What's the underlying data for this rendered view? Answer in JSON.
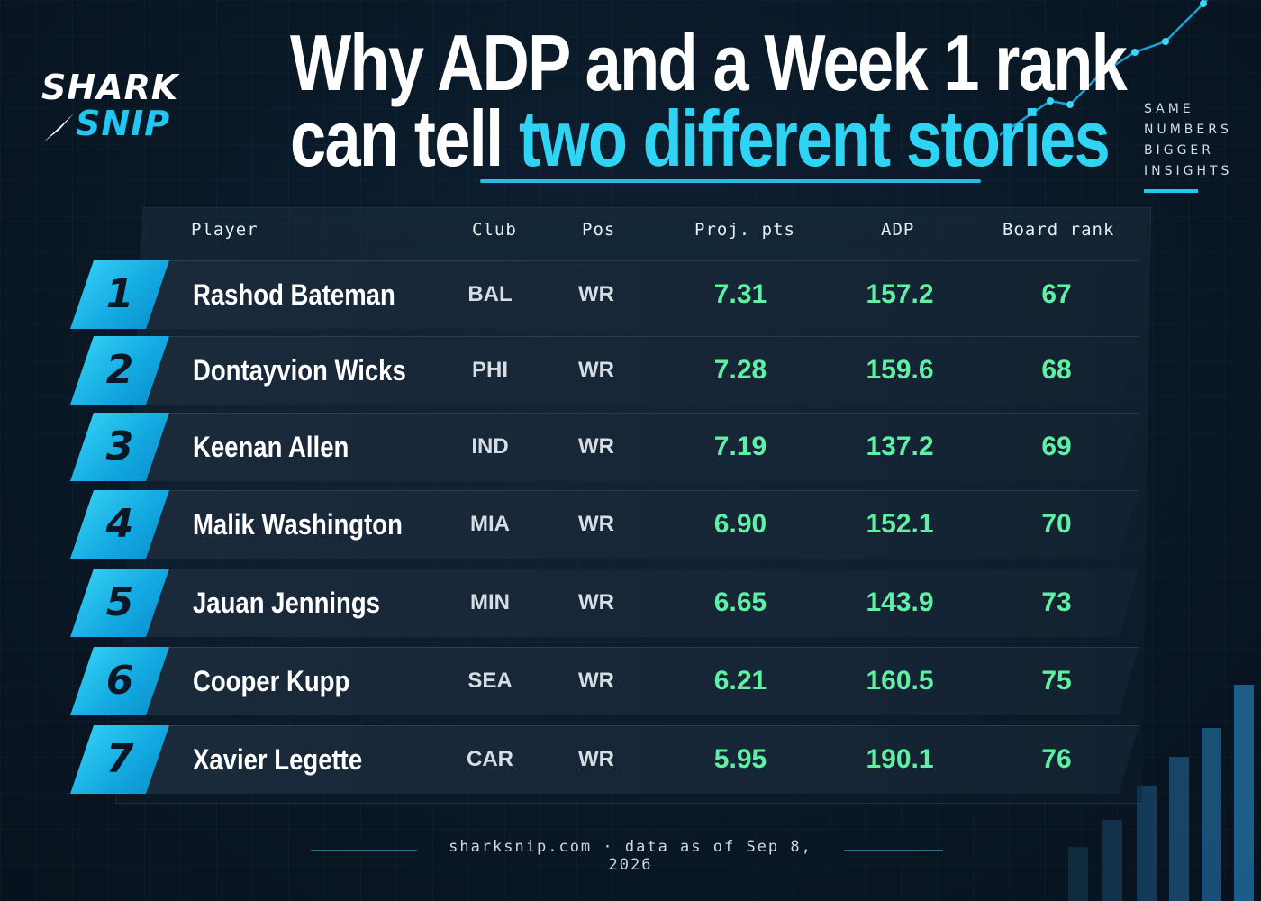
{
  "brand": {
    "line1": "SHARK",
    "line2": "SNIP"
  },
  "title": {
    "line1": "Why ADP and a Week 1 rank",
    "line2_lead": "can tell ",
    "line2_highlight": "two different stories"
  },
  "tagline": [
    "SAME",
    "NUMBERS",
    "BIGGER",
    "INSIGHTS"
  ],
  "colors": {
    "accent": "#22c6f2",
    "value_green": "#5ff0a4",
    "background": "#0a1826"
  },
  "table": {
    "headers": {
      "player": "Player",
      "club": "Club",
      "pos": "Pos",
      "proj": "Proj. pts",
      "adp": "ADP",
      "board_rank": "Board rank"
    },
    "rows": [
      {
        "rank": "1",
        "player": "Rashod Bateman",
        "club": "BAL",
        "pos": "WR",
        "proj": "7.31",
        "adp": "157.2",
        "board_rank": "67"
      },
      {
        "rank": "2",
        "player": "Dontayvion Wicks",
        "club": "PHI",
        "pos": "WR",
        "proj": "7.28",
        "adp": "159.6",
        "board_rank": "68"
      },
      {
        "rank": "3",
        "player": "Keenan Allen",
        "club": "IND",
        "pos": "WR",
        "proj": "7.19",
        "adp": "137.2",
        "board_rank": "69"
      },
      {
        "rank": "4",
        "player": "Malik Washington",
        "club": "MIA",
        "pos": "WR",
        "proj": "6.90",
        "adp": "152.1",
        "board_rank": "70"
      },
      {
        "rank": "5",
        "player": "Jauan Jennings",
        "club": "MIN",
        "pos": "WR",
        "proj": "6.65",
        "adp": "143.9",
        "board_rank": "73"
      },
      {
        "rank": "6",
        "player": "Cooper Kupp",
        "club": "SEA",
        "pos": "WR",
        "proj": "6.21",
        "adp": "160.5",
        "board_rank": "75"
      },
      {
        "rank": "7",
        "player": "Xavier Legette",
        "club": "CAR",
        "pos": "WR",
        "proj": "5.95",
        "adp": "190.1",
        "board_rank": "76"
      }
    ]
  },
  "footer": {
    "text": "sharksnip.com · data as of Sep 8, 2026"
  }
}
